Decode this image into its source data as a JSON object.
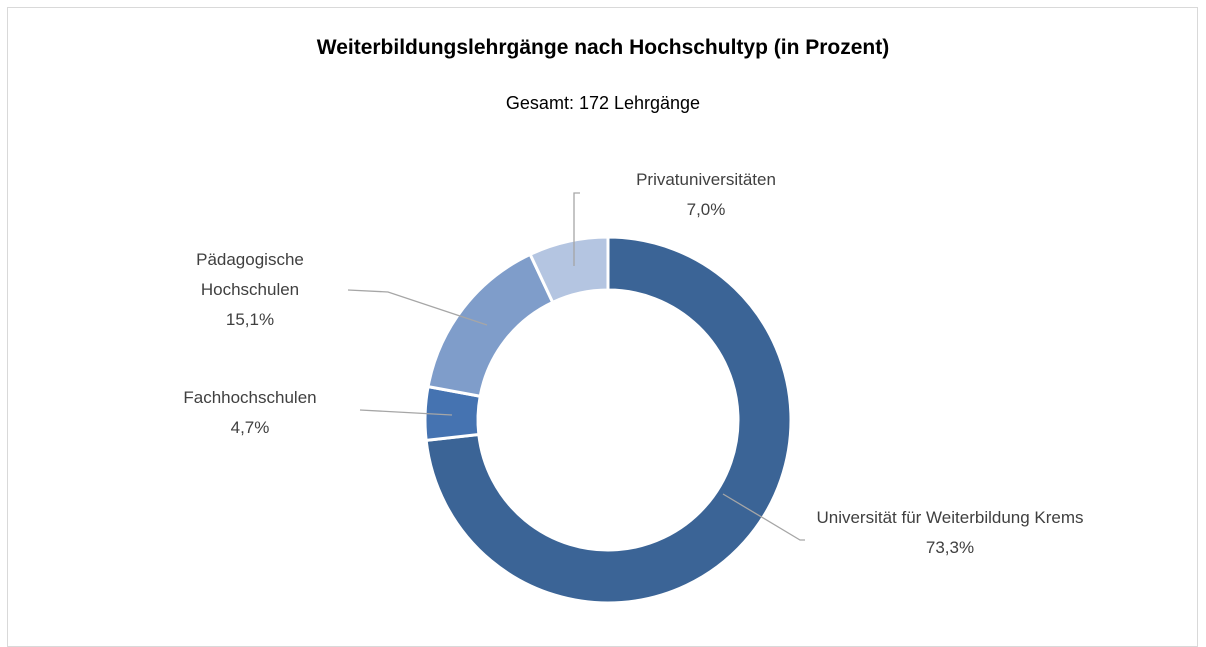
{
  "chart_data": {
    "type": "donut",
    "title": "Weiterbildungslehrgänge nach Hochschultyp (in Prozent)",
    "subtitle": "Gesamt: 172 Lehrgänge",
    "categories": [
      "Universität für Weiterbildung Krems",
      "Fachhochschulen",
      "Pädagogische Hochschulen",
      "Privatuniversitäten"
    ],
    "values": [
      73.3,
      4.7,
      15.1,
      7.0
    ],
    "value_labels": [
      "73,3%",
      "4,7%",
      "15,1%",
      "7,0%"
    ],
    "colors": [
      "#3b6496",
      "#4573b1",
      "#7f9dca",
      "#b4c5e1"
    ]
  }
}
